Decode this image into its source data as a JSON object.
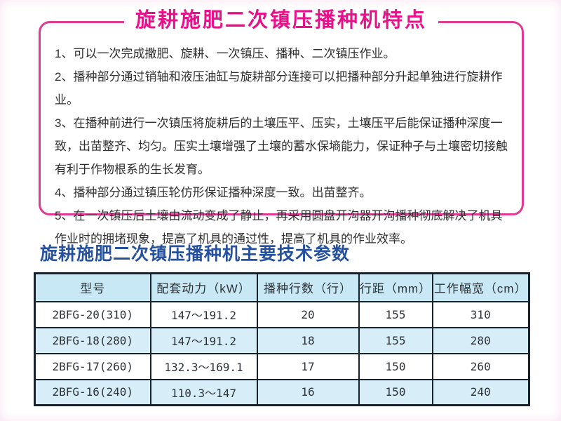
{
  "page": {
    "title": "旋耕施肥二次镇压播种机特点",
    "subtitle": "旋耕施肥二次镇压播种机主要技术参数"
  },
  "features": {
    "item1": "1、可以一次完成撒肥、旋耕、一次镇压、播种、二次镇压作业。",
    "item2": "2、播种部分通过销轴和液压油缸与旋耕部分连接可以把播种部分升起单独进行旋耕作业。",
    "item3": "3、在播种前进行一次镇压将旋耕后的土壤压平、压实，土壤压平后能保证播种深度一致，出苗整齐、均匀。压实土壤增强了土壤的蓄水保墒能力，保证种子与土壤密切接触有利于作物根系的生长发育。",
    "item4": "4、播种部分通过镇压轮仿形保证播种深度一致。出苗整齐。",
    "item5": "5、在一次镇压后土壤由流动变成了静止，再采用圆盘开沟器开沟播种彻底解决了机具作业时的拥堵现象，提高了机具的通过性，提高了机具的作业效率。"
  },
  "spec_table": {
    "headers": [
      "型号",
      "配套动力（kW）",
      "播种行数（行）",
      "行距（mm）",
      "工作幅宽（cm）"
    ],
    "rows": [
      [
        "2BFG-20(310)",
        "147～191.2",
        "20",
        "155",
        "310"
      ],
      [
        "2BFG-18(280)",
        "147～191.2",
        "18",
        "155",
        "280"
      ],
      [
        "2BFG-17(260)",
        "132.3～169.1",
        "17",
        "150",
        "260"
      ],
      [
        "2BFG-16(240)",
        "110.3～147",
        "16",
        "150",
        "240"
      ]
    ]
  },
  "colors": {
    "accent_pink": "#e9118a",
    "box_border_pink": "#e13a92",
    "subtitle_blue": "#26519f",
    "table_header_bg": "#c9e8f5",
    "table_alt_row_bg": "#d7eef9",
    "table_border": "#18222c",
    "body_text": "#2f2f2f"
  }
}
